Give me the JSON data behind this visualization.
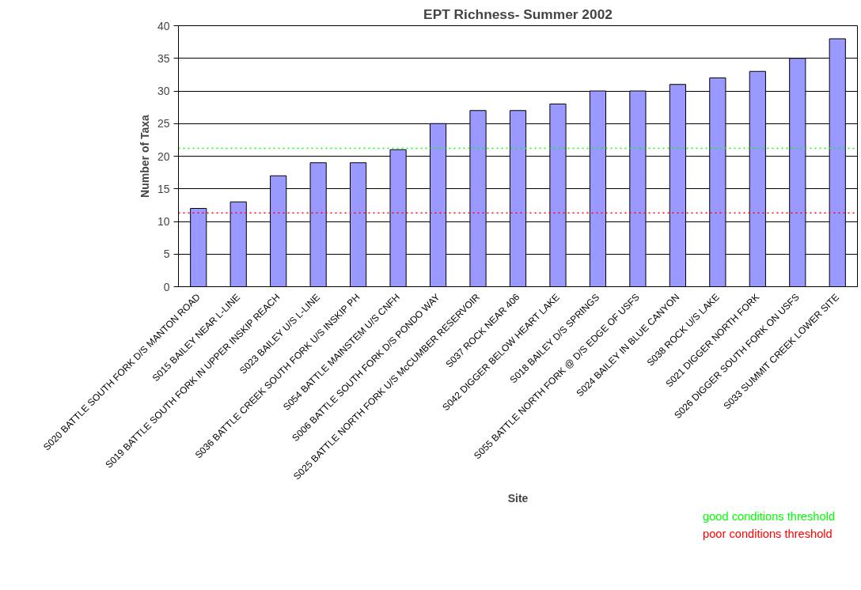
{
  "chart_data": {
    "type": "bar",
    "title": "EPT Richness- Summer 2002",
    "xlabel": "Site",
    "ylabel": "Number of Taxa",
    "categories": [
      "S020 BATTLE SOUTH FORK D/S MANTON ROAD",
      "S015 BAILEY NEAR L-LINE",
      "S019 BATTLE SOUTH FORK IN UPPER INSKIP REACH",
      "S023 BAILEY U/S L-LINE",
      "S036 BATTLE CREEK SOUTH FORK U/S INSKIP PH",
      "S054 BATTLE MAINSTEM U/S CNFH",
      "S006 BATTLE SOUTH FORK D/S PONDO WAY",
      "S025 BATTLE NORTH FORK U/S McCUMBER RESERVOIR",
      "S037 ROCK NEAR 406",
      "S042 DIGGER BELOW HEART LAKE",
      "S018 BAILEY D/S SPRINGS",
      "S055 BATTLE NORTH FORK @ D/S EDGE OF USFS",
      "S024 BAILEY IN BLUE CANYON",
      "S038 ROCK U/S LAKE",
      "S021 DIGGER NORTH FORK",
      "S026 DIGGER SOUTH FORK ON USFS",
      "S033 SUMMIT CREEK LOWER SITE"
    ],
    "values": [
      12,
      13,
      17,
      19,
      19,
      21,
      25,
      27,
      27,
      28,
      30,
      30,
      31,
      32,
      33,
      35,
      38
    ],
    "color": "#9999ff",
    "ylim": [
      0,
      40
    ],
    "yticks": [
      0,
      5,
      10,
      15,
      20,
      25,
      30,
      35,
      40
    ],
    "grid": "y",
    "legend": "bottom right",
    "ref_lines": [
      {
        "axis": "y",
        "value": 21.2,
        "label": "good conditions threshold",
        "color": "#00ff00",
        "line_style": "dotted"
      },
      {
        "axis": "y",
        "value": 11.3,
        "label": "poor conditions threshold",
        "color": "#ff0000",
        "line_style": "dotted"
      }
    ]
  }
}
